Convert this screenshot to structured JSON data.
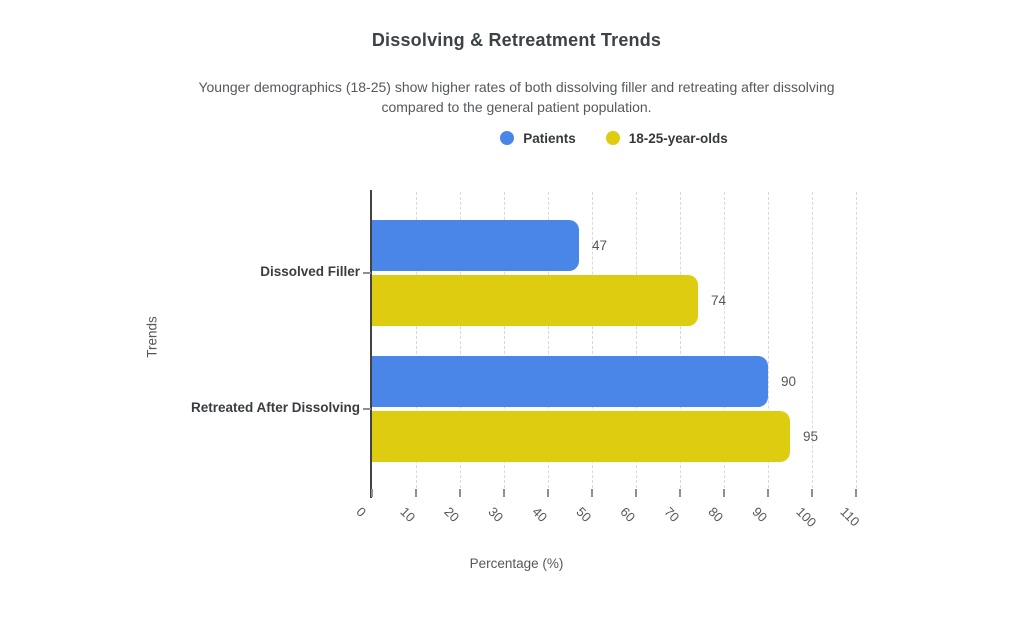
{
  "header": {
    "title": "Dissolving & Retreatment Trends",
    "subtitle": "Younger demographics (18-25) show higher rates of both dissolving filler and retreating after dissolving compared to the general patient population."
  },
  "legend": {
    "items": [
      {
        "label": "Patients",
        "color": "#4A86E8",
        "marker": "circle-icon"
      },
      {
        "label": "18-25-year-olds",
        "color": "#DECC11",
        "marker": "circle-icon"
      }
    ]
  },
  "chart_data": {
    "type": "bar",
    "orientation": "horizontal",
    "title": "Dissolving & Retreatment Trends",
    "categories": [
      "Dissolved Filler",
      "Retreated After Dissolving"
    ],
    "series": [
      {
        "name": "Patients",
        "color": "#4A86E8",
        "values": [
          47,
          90
        ]
      },
      {
        "name": "18-25-year-olds",
        "color": "#DECC11",
        "values": [
          74,
          95
        ]
      }
    ],
    "xlabel": "Percentage (%)",
    "ylabel": "Trends",
    "xlim": [
      0,
      110
    ],
    "xticks": [
      0,
      10,
      20,
      30,
      40,
      50,
      60,
      70,
      80,
      90,
      100,
      110
    ],
    "grid": "vertical-dashed",
    "legend_position": "top",
    "value_labels": [
      47,
      74,
      90,
      95
    ],
    "colors": {
      "axis_line": "#424242",
      "gridline": "#d9d9d9",
      "text_gray": "#55585b"
    }
  }
}
